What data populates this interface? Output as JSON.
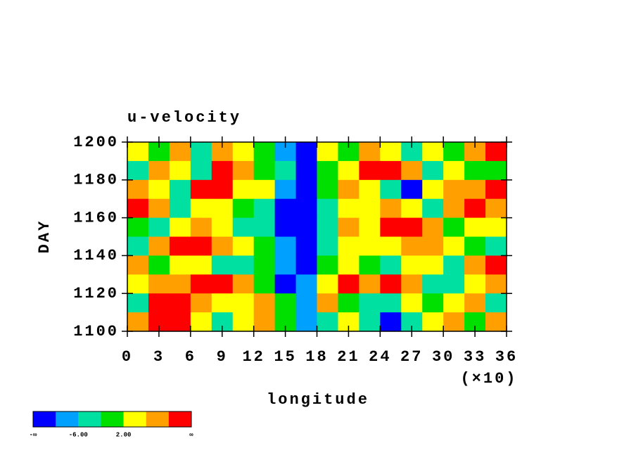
{
  "chart_data": {
    "type": "heatmap",
    "title": "u-velocity",
    "x_label": "longitude",
    "y_label": "DAY",
    "x_multiplier": "(×10)",
    "x": [
      10,
      30,
      50,
      70,
      90,
      110,
      130,
      150,
      170,
      190,
      210,
      230,
      250,
      270,
      290,
      310,
      330,
      350
    ],
    "y": [
      1195,
      1185,
      1175,
      1165,
      1155,
      1145,
      1135,
      1125,
      1115,
      1105
    ],
    "z": [
      [
        4,
        0,
        6,
        -4,
        8,
        3,
        0,
        -8,
        -12,
        4,
        -2,
        8,
        5,
        -3,
        4,
        0,
        6,
        12
      ],
      [
        -4,
        6,
        2,
        -3,
        12,
        8,
        -2,
        -6,
        -14,
        -2,
        4,
        12,
        14,
        6,
        -4,
        3,
        -2,
        0
      ],
      [
        8,
        4,
        -6,
        10,
        13,
        5,
        3,
        -10,
        -13,
        0,
        6,
        4,
        -5,
        -12,
        4,
        9,
        7,
        10
      ],
      [
        12,
        6,
        -4,
        2,
        4,
        0,
        -3,
        -12,
        -15,
        -6,
        2,
        4,
        6,
        2,
        -3,
        6,
        12,
        8
      ],
      [
        0,
        -6,
        4,
        6,
        2,
        -3,
        -6,
        -14,
        -11,
        -3,
        8,
        4,
        12,
        14,
        6,
        -2,
        4,
        2
      ],
      [
        -3,
        6,
        11,
        13,
        8,
        3,
        -2,
        -8,
        -13,
        -4,
        2,
        5,
        2,
        6,
        9,
        3,
        0,
        -4
      ],
      [
        6,
        -2,
        3,
        5,
        -4,
        -6,
        0,
        -10,
        -14,
        -2,
        4,
        0,
        -4,
        3,
        5,
        -3,
        8,
        12
      ],
      [
        2,
        7,
        9,
        11,
        12,
        6,
        0,
        -13,
        -10,
        5,
        10,
        6,
        12,
        8,
        -3,
        -6,
        4,
        6
      ],
      [
        -6,
        10,
        12,
        6,
        2,
        4,
        9,
        -2,
        -8,
        6,
        0,
        -4,
        -6,
        2,
        -2,
        4,
        6,
        -3
      ],
      [
        8,
        12,
        11,
        5,
        -3,
        2,
        6,
        0,
        -10,
        -3,
        2,
        -6,
        -12,
        -3,
        4,
        6,
        -2,
        8
      ]
    ],
    "xlim": [
      0,
      360
    ],
    "xticks": [
      {
        "value": 0,
        "label": "0"
      },
      {
        "value": 30,
        "label": "3"
      },
      {
        "value": 60,
        "label": "6"
      },
      {
        "value": 90,
        "label": "9"
      },
      {
        "value": 120,
        "label": "12"
      },
      {
        "value": 150,
        "label": "15"
      },
      {
        "value": 180,
        "label": "18"
      },
      {
        "value": 210,
        "label": "21"
      },
      {
        "value": 240,
        "label": "24"
      },
      {
        "value": 270,
        "label": "27"
      },
      {
        "value": 300,
        "label": "30"
      },
      {
        "value": 330,
        "label": "33"
      },
      {
        "value": 360,
        "label": "36"
      }
    ],
    "ylim": [
      1100,
      1200
    ],
    "yticks": [
      1100,
      1120,
      1140,
      1160,
      1180,
      1200
    ],
    "levels": [
      -10,
      -6,
      -2,
      2,
      6,
      10
    ],
    "colors": [
      "#0000ff",
      "#00a0ff",
      "#00e0a0",
      "#00e000",
      "#ffff00",
      "#ffa000",
      "#ff0000"
    ],
    "colorbar_ticks": [
      {
        "value": -6,
        "label": "-6.00"
      },
      {
        "value": 2,
        "label": "2.00"
      }
    ],
    "colorbar_ends": [
      "-∞",
      "∞"
    ]
  }
}
